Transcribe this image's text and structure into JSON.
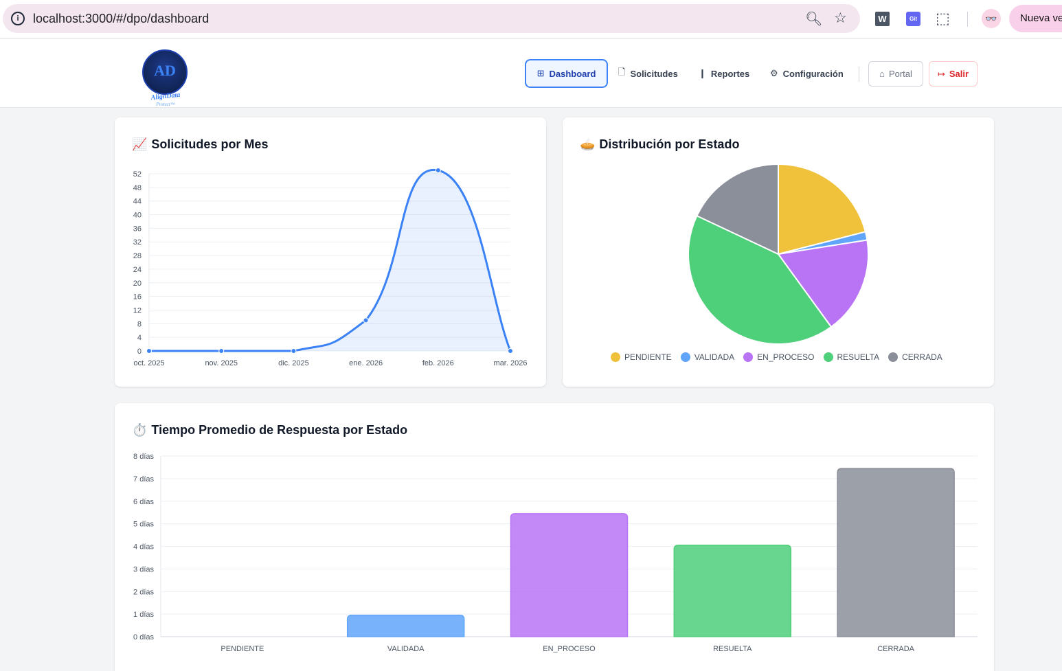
{
  "browser": {
    "url": "localhost:3000/#/dpo/dashboard",
    "ext_w": "W",
    "ext_git": "Git",
    "new_tab_label": "Nueva ve"
  },
  "header": {
    "logo_text": "AD",
    "logo_sub": "AlignData",
    "logo_sub2": "Protect™",
    "nav": {
      "dashboard": "Dashboard",
      "solicitudes": "Solicitudes",
      "reportes": "Reportes",
      "configuracion": "Configuración"
    },
    "portal": "Portal",
    "salir": "Salir"
  },
  "cards": {
    "line_title": "Solicitudes por Mes",
    "line_emoji": "📈",
    "pie_title": "Distribución por Estado",
    "pie_emoji": "🥧",
    "bar_title": "Tiempo Promedio de Respuesta por Estado",
    "bar_emoji": "⏱️"
  },
  "colors": {
    "primary": "#3b82f6",
    "pendiente": "#f0c23b",
    "validada": "#60a5fa",
    "en_proceso": "#b974f5",
    "resuelta": "#4ecf7a",
    "cerrada": "#8b8f99"
  },
  "chart_data": [
    {
      "type": "line",
      "title": "Solicitudes por Mes",
      "x": [
        "oct. 2025",
        "nov. 2025",
        "dic. 2025",
        "ene. 2026",
        "feb. 2026",
        "mar. 2026"
      ],
      "values": [
        0,
        0,
        0,
        9,
        53,
        0
      ],
      "ylim": [
        0,
        52
      ],
      "yticks": [
        0,
        4,
        8,
        12,
        16,
        20,
        24,
        28,
        32,
        36,
        40,
        44,
        48,
        52
      ],
      "grid": true,
      "fill": true
    },
    {
      "type": "pie",
      "title": "Distribución por Estado",
      "categories": [
        "PENDIENTE",
        "VALIDADA",
        "EN_PROCESO",
        "RESUELTA",
        "CERRADA"
      ],
      "values": [
        21,
        1.5,
        17.5,
        42,
        18
      ],
      "legend": "bottom"
    },
    {
      "type": "bar",
      "title": "Tiempo Promedio de Respuesta por Estado",
      "categories": [
        "PENDIENTE",
        "VALIDADA",
        "EN_PROCESO",
        "RESUELTA",
        "CERRADA"
      ],
      "values": [
        0,
        0.95,
        5.45,
        4.05,
        7.45
      ],
      "ylim": [
        0,
        8
      ],
      "yticks": [
        "0 días",
        "1 días",
        "2 días",
        "3 días",
        "4 días",
        "5 días",
        "6 días",
        "7 días",
        "8 días"
      ],
      "grid": true
    }
  ]
}
